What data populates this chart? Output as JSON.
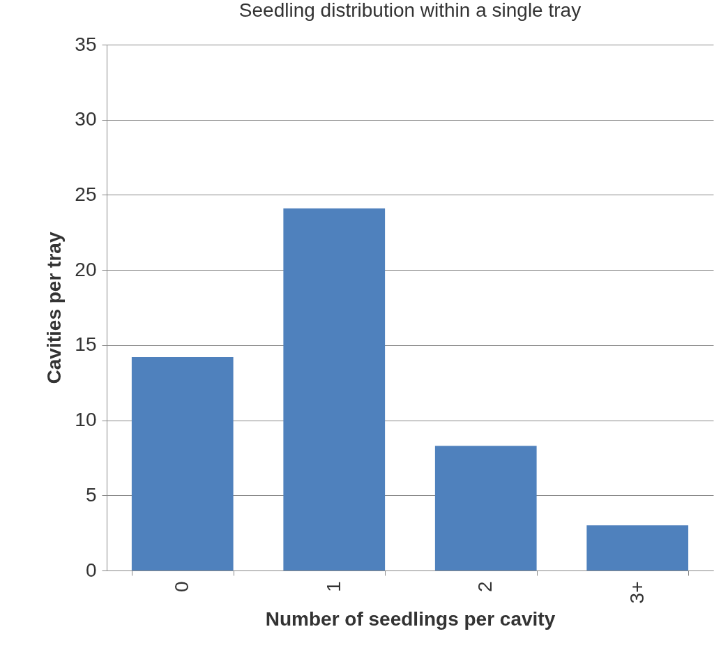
{
  "chart_data": {
    "type": "bar",
    "title": "Seedling distribution within a single tray",
    "xlabel": "Number of seedlings per cavity",
    "ylabel": "Cavities per tray",
    "categories": [
      "0",
      "1",
      "2",
      "3+"
    ],
    "values": [
      14.2,
      24.1,
      8.3,
      3.0
    ],
    "color": "#4f81bd",
    "ylim": [
      0,
      35
    ],
    "yticks": [
      0,
      5,
      10,
      15,
      20,
      25,
      30,
      35
    ],
    "grid": "y"
  }
}
